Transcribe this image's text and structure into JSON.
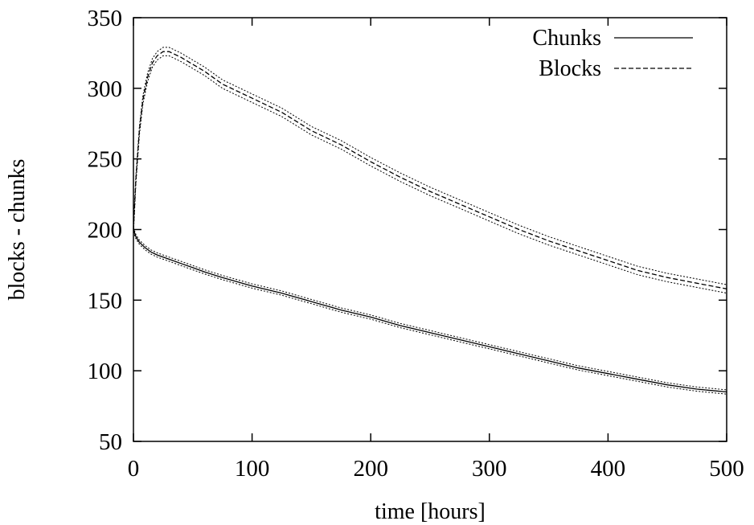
{
  "chart_data": {
    "type": "line",
    "title": "",
    "xlabel": "time [hours]",
    "ylabel": "blocks - chunks",
    "xlim": [
      0,
      500
    ],
    "ylim": [
      50,
      350
    ],
    "xticks": [
      0,
      100,
      200,
      300,
      400,
      500
    ],
    "yticks": [
      50,
      100,
      150,
      200,
      250,
      300,
      350
    ],
    "grid": false,
    "legend_position": "top-right",
    "legend": [
      {
        "label": "Chunks",
        "style": "solid"
      },
      {
        "label": "Blocks",
        "style": "dashed"
      }
    ],
    "series": [
      {
        "name": "Chunks",
        "style": "solid",
        "color": "#000000",
        "band": 1.5,
        "x": [
          0,
          2,
          5,
          10,
          15,
          20,
          30,
          40,
          50,
          60,
          75,
          100,
          125,
          150,
          175,
          200,
          225,
          250,
          275,
          300,
          325,
          350,
          375,
          400,
          425,
          450,
          475,
          500
        ],
        "y": [
          200,
          195,
          191,
          187,
          184,
          182,
          179,
          176,
          173,
          170,
          166,
          160,
          155,
          149,
          143,
          138,
          132,
          127,
          122,
          117,
          112,
          107,
          102,
          98,
          94,
          90,
          87,
          85
        ]
      },
      {
        "name": "Blocks",
        "style": "dashed",
        "color": "#000000",
        "band": 3,
        "x": [
          0,
          2,
          5,
          8,
          12,
          16,
          20,
          25,
          30,
          40,
          50,
          60,
          75,
          100,
          125,
          150,
          175,
          200,
          225,
          250,
          275,
          300,
          325,
          350,
          375,
          400,
          425,
          450,
          475,
          500
        ],
        "y": [
          200,
          235,
          270,
          292,
          308,
          318,
          323,
          326,
          326,
          322,
          317,
          312,
          303,
          293,
          283,
          270,
          260,
          248,
          237,
          227,
          218,
          209,
          200,
          192,
          185,
          178,
          171,
          166,
          162,
          158
        ]
      }
    ]
  }
}
